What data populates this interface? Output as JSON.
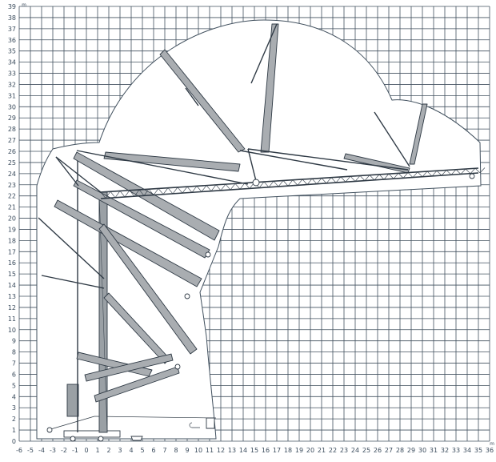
{
  "chart_data": {
    "type": "diagram",
    "x_unit": "m",
    "y_unit": "m",
    "x_range": [
      -6,
      36
    ],
    "y_range": [
      0,
      39
    ],
    "x_ticks": [
      -6,
      -5,
      -4,
      -3,
      -2,
      -1,
      0,
      1,
      2,
      3,
      4,
      5,
      6,
      7,
      8,
      9,
      10,
      11,
      12,
      13,
      14,
      15,
      16,
      17,
      18,
      19,
      20,
      21,
      22,
      23,
      24,
      25,
      26,
      27,
      28,
      29,
      30,
      31,
      32,
      33,
      34,
      35,
      36
    ],
    "y_ticks": [
      0,
      1,
      2,
      3,
      4,
      5,
      6,
      7,
      8,
      9,
      10,
      11,
      12,
      13,
      14,
      15,
      16,
      17,
      18,
      19,
      20,
      21,
      22,
      23,
      24,
      25,
      26,
      27,
      28,
      29,
      30,
      31,
      32,
      33,
      34,
      35,
      36,
      37,
      38,
      39
    ],
    "grid": true,
    "subject": "folding tower crane working-range envelope"
  }
}
